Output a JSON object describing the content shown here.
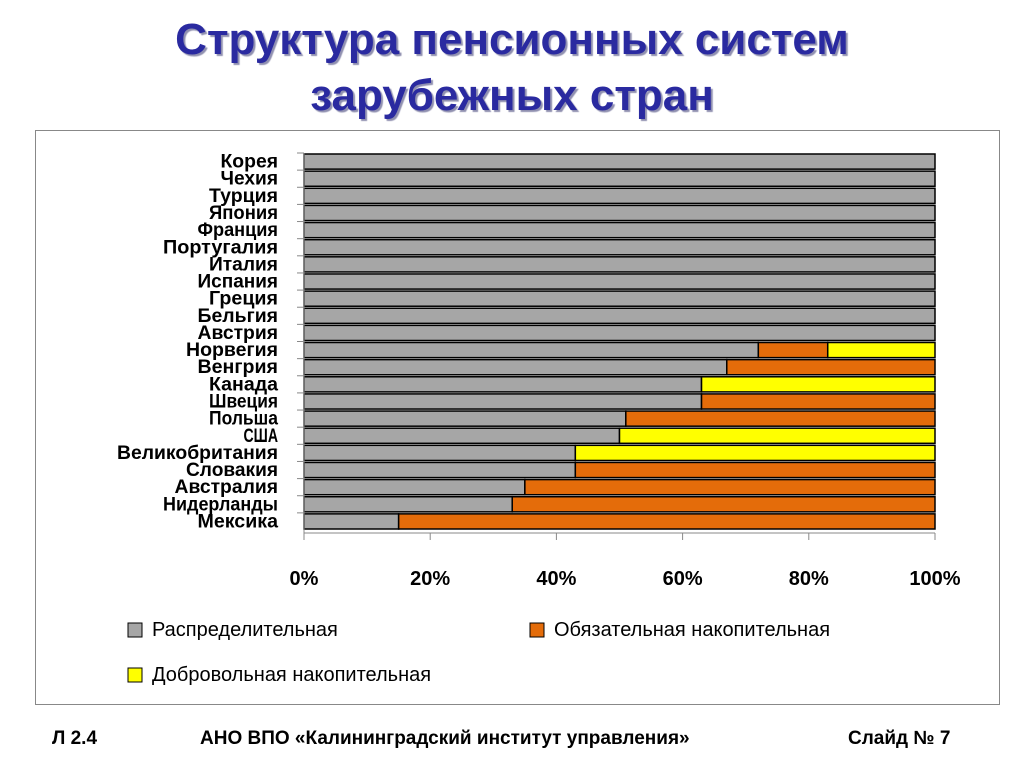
{
  "slide": {
    "title_line1": "Структура пенсионных систем",
    "title_line2": "зарубежных стран",
    "footer_left": "Л 2.4",
    "footer_center": "АНО ВПО «Калининградский институт управления»",
    "footer_right": "Слайд № 7"
  },
  "chart_data": {
    "type": "bar",
    "orientation": "horizontal",
    "stacked": "percent",
    "categories": [
      "Корея",
      "Чехия",
      "Турция",
      "Япония",
      "Франция",
      "Португалия",
      "Италия",
      "Испания",
      "Греция",
      "Бельгия",
      "Австрия",
      "Норвегия",
      "Венгрия",
      "Канада",
      "Швеция",
      "Польша",
      "США",
      "Великобритания",
      "Словакия",
      "Австралия",
      "Нидерланды",
      "Мексика"
    ],
    "series": [
      {
        "name": "Распределительная",
        "color": "#a6a6a6",
        "values": [
          100,
          100,
          100,
          100,
          100,
          100,
          100,
          100,
          100,
          100,
          100,
          72,
          67,
          63,
          63,
          51,
          50,
          43,
          43,
          35,
          33,
          15
        ]
      },
      {
        "name": "Обязательная накопительная",
        "color": "#e46c0a",
        "values": [
          0,
          0,
          0,
          0,
          0,
          0,
          0,
          0,
          0,
          0,
          0,
          11,
          33,
          0,
          37,
          49,
          0,
          0,
          57,
          65,
          67,
          85
        ]
      },
      {
        "name": "Добровольная накопительная",
        "color": "#ffff00",
        "values": [
          0,
          0,
          0,
          0,
          0,
          0,
          0,
          0,
          0,
          0,
          0,
          17,
          0,
          37,
          0,
          0,
          50,
          57,
          0,
          0,
          0,
          0
        ]
      }
    ],
    "xlim": [
      0,
      100
    ],
    "xticks": [
      "0%",
      "20%",
      "40%",
      "60%",
      "80%",
      "100%"
    ],
    "grid": false,
    "legend_position": "bottom"
  }
}
